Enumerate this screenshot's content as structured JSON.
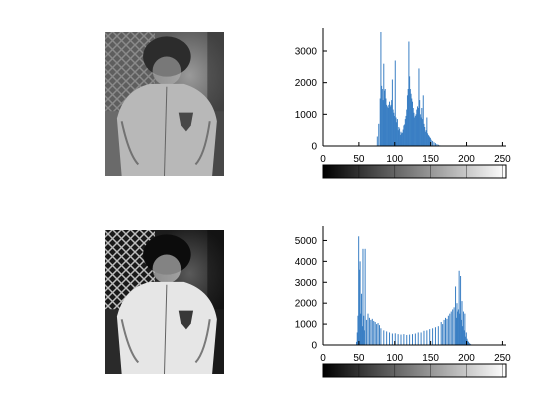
{
  "chart_data": [
    {
      "type": "image",
      "label": "original-photo",
      "colors": {
        "background": "#6a6a6a",
        "light": "#b8b8b8",
        "dark": "#2c2c2c"
      }
    },
    {
      "type": "bar",
      "label": "histogram-original",
      "xlim": [
        0,
        255
      ],
      "ylim": [
        0,
        3600
      ],
      "xticks": [
        "0",
        "50",
        "100",
        "150",
        "200",
        "250"
      ],
      "yticks": [
        "0",
        "1000",
        "2000",
        "3000"
      ],
      "bar_color": "#3a7fc4",
      "colorbar": {
        "from": "#000000",
        "to": "#ffffff",
        "range": [
          0,
          255
        ]
      },
      "x": [
        75,
        77,
        79,
        80,
        81,
        82,
        83,
        84,
        85,
        86,
        87,
        88,
        89,
        90,
        91,
        92,
        93,
        94,
        95,
        96,
        97,
        98,
        99,
        100,
        101,
        102,
        103,
        104,
        105,
        106,
        107,
        108,
        109,
        110,
        111,
        112,
        113,
        114,
        115,
        116,
        117,
        118,
        119,
        120,
        121,
        122,
        123,
        124,
        125,
        126,
        127,
        128,
        129,
        130,
        131,
        132,
        133,
        134,
        135,
        136,
        137,
        138,
        139,
        140,
        141,
        142,
        143,
        144,
        145,
        146,
        147,
        148,
        149,
        150,
        152,
        154,
        156,
        158,
        160,
        162
      ],
      "values": [
        300,
        700,
        1500,
        3600,
        1900,
        1800,
        1450,
        2600,
        1750,
        1800,
        1500,
        1300,
        1250,
        1200,
        1300,
        1400,
        1250,
        1300,
        1450,
        2100,
        1150,
        1050,
        950,
        2700,
        900,
        750,
        850,
        500,
        600,
        550,
        350,
        450,
        400,
        420,
        520,
        650,
        680,
        850,
        950,
        1150,
        1600,
        1800,
        3300,
        2200,
        1800,
        1650,
        1500,
        1400,
        1200,
        1050,
        900,
        950,
        1000,
        1150,
        1250,
        1200,
        2450,
        1450,
        1000,
        900,
        1200,
        850,
        1600,
        700,
        600,
        450,
        500,
        900,
        400,
        350,
        320,
        280,
        250,
        200,
        160,
        120,
        90,
        60,
        40,
        20
      ]
    },
    {
      "type": "image",
      "label": "equalized-photo",
      "colors": {
        "background": "#2a2a2a",
        "light": "#e6e6e6",
        "dark": "#0c0c0c"
      }
    },
    {
      "type": "bar",
      "label": "histogram-equalized",
      "xlim": [
        0,
        255
      ],
      "ylim": [
        0,
        5500
      ],
      "xticks": [
        "0",
        "50",
        "100",
        "150",
        "200",
        "250"
      ],
      "yticks": [
        "0",
        "1000",
        "2000",
        "3000",
        "4000",
        "5000"
      ],
      "bar_color": "#3a7fc4",
      "colorbar": {
        "from": "#000000",
        "to": "#ffffff",
        "range": [
          0,
          255
        ]
      },
      "x": [
        46,
        47,
        48,
        49,
        50,
        51,
        52,
        53,
        54,
        55,
        56,
        57,
        58,
        60,
        62,
        64,
        66,
        68,
        70,
        72,
        74,
        76,
        78,
        80,
        84,
        88,
        92,
        96,
        100,
        104,
        108,
        112,
        116,
        120,
        124,
        128,
        132,
        136,
        140,
        144,
        148,
        152,
        156,
        160,
        164,
        166,
        168,
        170,
        172,
        174,
        176,
        178,
        180,
        182,
        184,
        185,
        186,
        187,
        188,
        189,
        190,
        191,
        192,
        193,
        194,
        195,
        196,
        197,
        198,
        199,
        200,
        201,
        202,
        203,
        204,
        205,
        206
      ],
      "values": [
        150,
        600,
        1400,
        5200,
        3600,
        4000,
        1500,
        2450,
        900,
        4600,
        1400,
        700,
        4600,
        1200,
        1500,
        1300,
        1200,
        1250,
        1150,
        1100,
        1000,
        1050,
        950,
        800,
        700,
        650,
        600,
        550,
        560,
        520,
        500,
        520,
        480,
        500,
        520,
        550,
        600,
        600,
        680,
        700,
        760,
        800,
        850,
        900,
        1100,
        1000,
        1200,
        1300,
        1250,
        1400,
        1500,
        1600,
        1700,
        1800,
        2800,
        1300,
        2000,
        1600,
        1700,
        3550,
        1500,
        3300,
        1200,
        2100,
        900,
        1600,
        700,
        1500,
        400,
        600,
        300,
        200,
        150,
        100,
        60,
        40,
        20
      ]
    }
  ]
}
